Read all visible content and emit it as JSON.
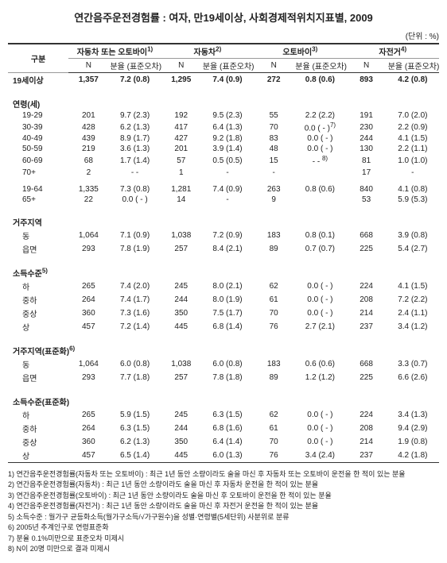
{
  "title": "연간음주운전경험률 : 여자, 만19세이상, 사회경제적위치지표별, 2009",
  "unit": "(단위 : %)",
  "header": {
    "cat": "구분",
    "groups": [
      {
        "label": "자동차 또는 오토바이",
        "sup": "1)"
      },
      {
        "label": "자동차",
        "sup": "2)"
      },
      {
        "label": "오토바이",
        "sup": "3)"
      },
      {
        "label": "자전거",
        "sup": "4)"
      }
    ],
    "sub": [
      "N",
      "분율 (표준오차)"
    ]
  },
  "rows": [
    {
      "type": "bold",
      "label": "19세이상",
      "c": [
        [
          "1,357",
          "7.2 (0.8)"
        ],
        [
          "1,295",
          "7.4 (0.9)"
        ],
        [
          "272",
          "0.8 (0.6)"
        ],
        [
          "893",
          "4.2 (0.8)"
        ]
      ]
    },
    {
      "type": "gap"
    },
    {
      "type": "section",
      "label": "연령(세)"
    },
    {
      "type": "row",
      "label": "19-29",
      "c": [
        [
          "201",
          "9.7 (2.3)"
        ],
        [
          "192",
          "9.5 (2.3)"
        ],
        [
          "55",
          "2.2 (2.2)"
        ],
        [
          "191",
          "7.0 (2.0)"
        ]
      ]
    },
    {
      "type": "row",
      "label": "30-39",
      "c": [
        [
          "428",
          "6.2 (1.3)"
        ],
        [
          "417",
          "6.4 (1.3)"
        ],
        [
          "70",
          "0.0 ( - )<sup>7)</sup>"
        ],
        [
          "230",
          "2.2 (0.9)"
        ]
      ]
    },
    {
      "type": "row",
      "label": "40-49",
      "c": [
        [
          "439",
          "8.9 (1.7)"
        ],
        [
          "427",
          "9.2 (1.8)"
        ],
        [
          "83",
          "0.0 ( - )"
        ],
        [
          "244",
          "4.1 (1.5)"
        ]
      ]
    },
    {
      "type": "row",
      "label": "50-59",
      "c": [
        [
          "219",
          "3.6 (1.3)"
        ],
        [
          "201",
          "3.9 (1.4)"
        ],
        [
          "48",
          "0.0 ( - )"
        ],
        [
          "130",
          "2.2 (1.1)"
        ]
      ]
    },
    {
      "type": "row",
      "label": "60-69",
      "c": [
        [
          "68",
          "1.7 (1.4)"
        ],
        [
          "57",
          "0.5 (0.5)"
        ],
        [
          "15",
          "- - <sup>8)</sup>"
        ],
        [
          "81",
          "1.0 (1.0)"
        ]
      ]
    },
    {
      "type": "row",
      "label": "70+",
      "c": [
        [
          "2",
          "- -"
        ],
        [
          "1",
          "-"
        ],
        [
          "-",
          ""
        ],
        [
          "17",
          "-"
        ]
      ]
    },
    {
      "type": "gap"
    },
    {
      "type": "row",
      "label": "19-64",
      "c": [
        [
          "1,335",
          "7.3 (0.8)"
        ],
        [
          "1,281",
          "7.4 (0.9)"
        ],
        [
          "263",
          "0.8 (0.6)"
        ],
        [
          "840",
          "4.1 (0.8)"
        ]
      ]
    },
    {
      "type": "row",
      "label": "65+",
      "c": [
        [
          "22",
          "0.0 ( - )"
        ],
        [
          "14",
          "-"
        ],
        [
          "9",
          ""
        ],
        [
          "53",
          "5.9 (5.3)"
        ]
      ]
    },
    {
      "type": "gap"
    },
    {
      "type": "section",
      "label": "거주지역"
    },
    {
      "type": "row",
      "label": "동",
      "c": [
        [
          "1,064",
          "7.1 (0.9)"
        ],
        [
          "1,038",
          "7.2 (0.9)"
        ],
        [
          "183",
          "0.8 (0.1)"
        ],
        [
          "668",
          "3.9 (0.8)"
        ]
      ]
    },
    {
      "type": "row",
      "label": "읍면",
      "c": [
        [
          "293",
          "7.8 (1.9)"
        ],
        [
          "257",
          "8.4 (2.1)"
        ],
        [
          "89",
          "0.7 (0.7)"
        ],
        [
          "225",
          "5.4 (2.7)"
        ]
      ]
    },
    {
      "type": "gap"
    },
    {
      "type": "section",
      "label": "소득수준<sup>5)</sup>"
    },
    {
      "type": "row",
      "label": "하",
      "c": [
        [
          "265",
          "7.4 (2.0)"
        ],
        [
          "245",
          "8.0 (2.1)"
        ],
        [
          "62",
          "0.0 ( - )"
        ],
        [
          "224",
          "4.1 (1.5)"
        ]
      ]
    },
    {
      "type": "row",
      "label": "중하",
      "c": [
        [
          "264",
          "7.4 (1.7)"
        ],
        [
          "244",
          "8.0 (1.9)"
        ],
        [
          "61",
          "0.0 ( - )"
        ],
        [
          "208",
          "7.2 (2.2)"
        ]
      ]
    },
    {
      "type": "row",
      "label": "중상",
      "c": [
        [
          "360",
          "7.3 (1.6)"
        ],
        [
          "350",
          "7.5 (1.7)"
        ],
        [
          "70",
          "0.0 ( - )"
        ],
        [
          "214",
          "2.4 (1.1)"
        ]
      ]
    },
    {
      "type": "row",
      "label": "상",
      "c": [
        [
          "457",
          "7.2 (1.4)"
        ],
        [
          "445",
          "6.8 (1.4)"
        ],
        [
          "76",
          "2.7 (2.1)"
        ],
        [
          "237",
          "3.4 (1.2)"
        ]
      ]
    },
    {
      "type": "gap"
    },
    {
      "type": "section",
      "label": "거주지역(표준화)<sup>6)</sup>"
    },
    {
      "type": "row",
      "label": "동",
      "c": [
        [
          "1,064",
          "6.0 (0.8)"
        ],
        [
          "1,038",
          "6.0 (0.8)"
        ],
        [
          "183",
          "0.6 (0.6)"
        ],
        [
          "668",
          "3.3 (0.7)"
        ]
      ]
    },
    {
      "type": "row",
      "label": "읍면",
      "c": [
        [
          "293",
          "7.7 (1.8)"
        ],
        [
          "257",
          "7.8 (1.8)"
        ],
        [
          "89",
          "1.2 (1.2)"
        ],
        [
          "225",
          "6.6 (2.6)"
        ]
      ]
    },
    {
      "type": "gap"
    },
    {
      "type": "section",
      "label": "소득수준(표준화)"
    },
    {
      "type": "row",
      "label": "하",
      "c": [
        [
          "265",
          "5.9 (1.5)"
        ],
        [
          "245",
          "6.3 (1.5)"
        ],
        [
          "62",
          "0.0 ( - )"
        ],
        [
          "224",
          "3.4 (1.3)"
        ]
      ]
    },
    {
      "type": "row",
      "label": "중하",
      "c": [
        [
          "264",
          "6.3 (1.5)"
        ],
        [
          "244",
          "6.8 (1.6)"
        ],
        [
          "61",
          "0.0 ( - )"
        ],
        [
          "208",
          "9.4 (2.9)"
        ]
      ]
    },
    {
      "type": "row",
      "label": "중상",
      "c": [
        [
          "360",
          "6.2 (1.3)"
        ],
        [
          "350",
          "6.4 (1.4)"
        ],
        [
          "70",
          "0.0 ( - )"
        ],
        [
          "214",
          "1.9 (0.8)"
        ]
      ]
    },
    {
      "type": "row",
      "label": "상",
      "c": [
        [
          "457",
          "6.5 (1.4)"
        ],
        [
          "445",
          "6.0 (1.3)"
        ],
        [
          "76",
          "3.4 (2.4)"
        ],
        [
          "237",
          "4.2 (1.8)"
        ]
      ]
    }
  ],
  "footnotes": [
    "1) 연간음주운전경험률(자동차 또는 오토바이) : 최근 1년 동안 소량이라도 술을 마신 후 자동차 또는 오토바이 운전을 한 적이 있는 분율",
    "2) 연간음주운전경험률(자동차) : 최근 1년 동안 소량이라도 술을 마신 후 자동차 운전을 한 적이 있는 분율",
    "3) 연간음주운전경험률(오토바이) : 최근 1년 동안 소량이라도 술을 마신 후 오토바이 운전을 한 적이 있는 분율",
    "4) 연간음주운전경험률(자전거) : 최근 1년 동안 소량이라도 술을 마신 후 자전거 운전을 한 적이 있는 분율",
    "5) 소득수준 : 월가구 균등화소득(월가구소득/√가구원수)을 성별·연령별(5세단위) 사분위로 분류",
    "6) 2005년 추계인구로 연령표준화",
    "7) 분율 0.1%미만으로 표준오차 미제시",
    "8) N이 20명 미만으로 결과 미제시"
  ]
}
